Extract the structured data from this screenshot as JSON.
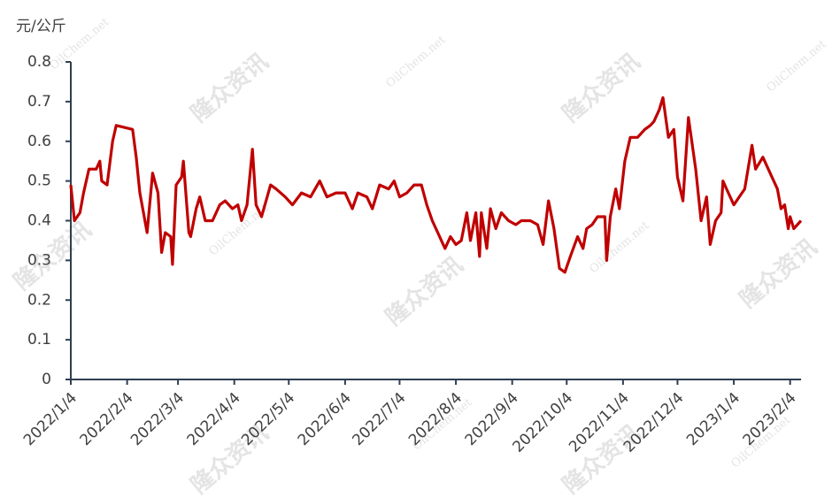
{
  "chart_data": {
    "type": "line",
    "y_label": "元/公斤",
    "watermarks": [
      "隆众资讯",
      "OilChem.net"
    ],
    "x": [
      "2022/1/4",
      "2022/1/6",
      "2022/1/9",
      "2022/1/11",
      "2022/1/14",
      "2022/1/18",
      "2022/1/20",
      "2022/1/21",
      "2022/1/24",
      "2022/1/27",
      "2022/1/29",
      "2022/2/7",
      "2022/2/9",
      "2022/2/11",
      "2022/2/13",
      "2022/2/15",
      "2022/2/18",
      "2022/2/21",
      "2022/2/23",
      "2022/2/25",
      "2022/2/28",
      "2022/3/1",
      "2022/3/3",
      "2022/3/6",
      "2022/3/7",
      "2022/3/10",
      "2022/3/11",
      "2022/3/14",
      "2022/3/16",
      "2022/3/19",
      "2022/3/23",
      "2022/3/27",
      "2022/3/30",
      "2022/4/3",
      "2022/4/6",
      "2022/4/8",
      "2022/4/11",
      "2022/4/14",
      "2022/4/16",
      "2022/4/19",
      "2022/4/24",
      "2022/4/27",
      "2022/5/2",
      "2022/5/6",
      "2022/5/11",
      "2022/5/16",
      "2022/5/21",
      "2022/5/25",
      "2022/5/30",
      "2022/6/4",
      "2022/6/8",
      "2022/6/11",
      "2022/6/16",
      "2022/6/19",
      "2022/6/23",
      "2022/6/28",
      "2022/7/1",
      "2022/7/4",
      "2022/7/8",
      "2022/7/12",
      "2022/7/16",
      "2022/7/19",
      "2022/7/22",
      "2022/7/25",
      "2022/7/29",
      "2022/8/1",
      "2022/8/4",
      "2022/8/7",
      "2022/8/10",
      "2022/8/12",
      "2022/8/15",
      "2022/8/17",
      "2022/8/18",
      "2022/8/21",
      "2022/8/23",
      "2022/8/26",
      "2022/8/29",
      "2022/9/2",
      "2022/9/6",
      "2022/9/9",
      "2022/9/14",
      "2022/9/18",
      "2022/9/21",
      "2022/9/24",
      "2022/9/27",
      "2022/9/30",
      "2022/10/3",
      "2022/10/6",
      "2022/10/10",
      "2022/10/13",
      "2022/10/15",
      "2022/10/18",
      "2022/10/21",
      "2022/10/25",
      "2022/10/26",
      "2022/10/28",
      "2022/10/31",
      "2022/11/2",
      "2022/11/5",
      "2022/11/8",
      "2022/11/12",
      "2022/11/16",
      "2022/11/19",
      "2022/11/21",
      "2022/11/24",
      "2022/11/26",
      "2022/11/29",
      "2022/12/2",
      "2022/12/4",
      "2022/12/7",
      "2022/12/10",
      "2022/12/14",
      "2022/12/17",
      "2022/12/20",
      "2022/12/22",
      "2022/12/25",
      "2022/12/28",
      "2022/12/29",
      "2023/1/1",
      "2023/1/4",
      "2023/1/7",
      "2023/1/10",
      "2023/1/14",
      "2023/1/16",
      "2023/1/20",
      "2023/1/24",
      "2023/1/28",
      "2023/1/30",
      "2023/2/1",
      "2023/2/3",
      "2023/2/4",
      "2023/2/6",
      "2023/2/10"
    ],
    "series": [
      {
        "color": "#c00000",
        "values": [
          0.49,
          0.4,
          0.42,
          0.47,
          0.53,
          0.53,
          0.55,
          0.5,
          0.49,
          0.6,
          0.64,
          0.63,
          0.56,
          0.47,
          0.42,
          0.37,
          0.52,
          0.47,
          0.32,
          0.37,
          0.36,
          0.29,
          0.49,
          0.51,
          0.55,
          0.37,
          0.36,
          0.43,
          0.46,
          0.4,
          0.4,
          0.44,
          0.45,
          0.43,
          0.44,
          0.4,
          0.44,
          0.58,
          0.44,
          0.41,
          0.49,
          0.48,
          0.46,
          0.44,
          0.47,
          0.46,
          0.5,
          0.46,
          0.47,
          0.47,
          0.43,
          0.47,
          0.46,
          0.43,
          0.49,
          0.48,
          0.5,
          0.46,
          0.47,
          0.49,
          0.49,
          0.44,
          0.4,
          0.37,
          0.33,
          0.36,
          0.34,
          0.35,
          0.42,
          0.35,
          0.42,
          0.31,
          0.42,
          0.33,
          0.43,
          0.38,
          0.42,
          0.4,
          0.39,
          0.4,
          0.4,
          0.39,
          0.34,
          0.45,
          0.38,
          0.28,
          0.27,
          0.31,
          0.36,
          0.33,
          0.38,
          0.39,
          0.41,
          0.41,
          0.3,
          0.41,
          0.48,
          0.43,
          0.55,
          0.61,
          0.61,
          0.63,
          0.64,
          0.65,
          0.68,
          0.71,
          0.61,
          0.63,
          0.51,
          0.45,
          0.66,
          0.53,
          0.4,
          0.46,
          0.34,
          0.4,
          0.42,
          0.5,
          0.47,
          0.44,
          0.46,
          0.48,
          0.59,
          0.53,
          0.56,
          0.52,
          0.48,
          0.43,
          0.44,
          0.38,
          0.41,
          0.38,
          0.4
        ]
      }
    ],
    "xlim": [
      "2022/1/4",
      "2023/2/10"
    ],
    "xticks": [
      "2022/1/4",
      "2022/2/4",
      "2022/3/4",
      "2022/4/4",
      "2022/5/4",
      "2022/6/4",
      "2022/7/4",
      "2022/8/4",
      "2022/9/4",
      "2022/10/4",
      "2022/11/4",
      "2022/12/4",
      "2023/1/4",
      "2023/2/4"
    ],
    "ylim": [
      0,
      0.8
    ],
    "yticks": [
      0,
      0.1,
      0.2,
      0.3,
      0.4,
      0.5,
      0.6,
      0.7,
      0.8
    ],
    "grid": false
  }
}
